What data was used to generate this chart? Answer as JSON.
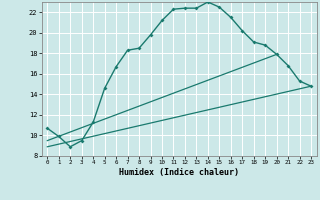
{
  "title": "",
  "xlabel": "Humidex (Indice chaleur)",
  "bg_color": "#cce8e8",
  "grid_color": "#ffffff",
  "line_color": "#1a7a6e",
  "xlim": [
    -0.5,
    23.5
  ],
  "ylim": [
    8,
    23
  ],
  "xticks": [
    0,
    1,
    2,
    3,
    4,
    5,
    6,
    7,
    8,
    9,
    10,
    11,
    12,
    13,
    14,
    15,
    16,
    17,
    18,
    19,
    20,
    21,
    22,
    23
  ],
  "yticks": [
    8,
    10,
    12,
    14,
    16,
    18,
    20,
    22
  ],
  "curve1_x": [
    0,
    1,
    2,
    3,
    4,
    5,
    6,
    7,
    8,
    9,
    10,
    11,
    12,
    13,
    14,
    15,
    16,
    17,
    18,
    19,
    20,
    21,
    22,
    23
  ],
  "curve1_y": [
    10.7,
    9.9,
    8.9,
    9.5,
    11.3,
    14.6,
    16.7,
    18.3,
    18.5,
    19.8,
    21.2,
    22.3,
    22.4,
    22.4,
    23.0,
    22.5,
    21.5,
    20.2,
    19.1,
    18.8,
    17.9,
    16.8,
    15.3,
    14.8
  ],
  "line2_x": [
    0,
    20
  ],
  "line2_y": [
    9.5,
    17.9
  ],
  "line3_x": [
    0,
    23
  ],
  "line3_y": [
    8.9,
    14.8
  ]
}
